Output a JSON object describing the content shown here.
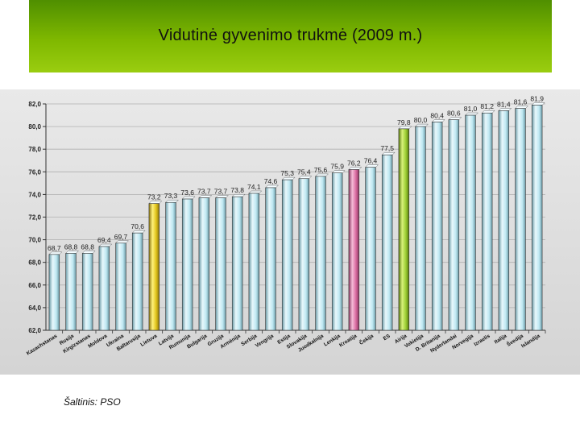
{
  "title": "Vidutinė gyvenimo trukmė (2009 m.)",
  "source": "Šaltinis: PSO",
  "chart_data": {
    "type": "bar",
    "title": "Vidutinė gyvenimo trukmė (2009 m.)",
    "xlabel": "",
    "ylabel": "",
    "ylim": [
      62,
      82
    ],
    "yticks": [
      62,
      64,
      66,
      68,
      70,
      72,
      74,
      76,
      78,
      80,
      82
    ],
    "ytick_labels": [
      "62,0",
      "64,0",
      "66,0",
      "68,0",
      "70,0",
      "72,0",
      "74,0",
      "76,0",
      "78,0",
      "80,0",
      "82,0"
    ],
    "grid": true,
    "legend": "none",
    "categories": [
      "Kazachstanas",
      "Rusija",
      "Kirgizstanas",
      "Moldova",
      "Ukraina",
      "Baltarusija",
      "Lietuva",
      "Latvija",
      "Rumunija",
      "Bulgarija",
      "Gruzija",
      "Armėnija",
      "Serbija",
      "Vengrija",
      "Estija",
      "Slovakija",
      "Juodkalnija",
      "Lenkija",
      "Kroatija",
      "Čekija",
      "ES",
      "Airija",
      "Vokietija",
      "D. Britanija",
      "Nyderlandai",
      "Norvegija",
      "Izraelis",
      "Italija",
      "Švedija",
      "Islandija"
    ],
    "value_labels": [
      "68,7",
      "68,8",
      "68,8",
      "69,4",
      "69,7",
      "70,6",
      "73,2",
      "73,3",
      "73,6",
      "73,7",
      "73,7",
      "73,8",
      "74,1",
      "74,6",
      "75,3",
      "75,4",
      "75,6",
      "75,9",
      "76,2",
      "76,4",
      "77,5",
      "79,8",
      "80,0",
      "80,4",
      "80,6",
      "81,0",
      "81,2",
      "81,4",
      "81,6",
      "81,9"
    ],
    "values": [
      68.7,
      68.8,
      68.8,
      69.4,
      69.7,
      70.6,
      73.2,
      73.3,
      73.6,
      73.7,
      73.7,
      73.8,
      74.1,
      74.6,
      75.3,
      75.4,
      75.6,
      75.9,
      76.2,
      76.4,
      77.5,
      79.8,
      80.0,
      80.4,
      80.6,
      81.0,
      81.2,
      81.4,
      81.6,
      81.9
    ],
    "colors": {
      "default_bar": "#bfe8f2",
      "Lietuva": "#e0c31a",
      "Kroatija": "#d96ba0",
      "Airija": "#9acd32"
    }
  }
}
